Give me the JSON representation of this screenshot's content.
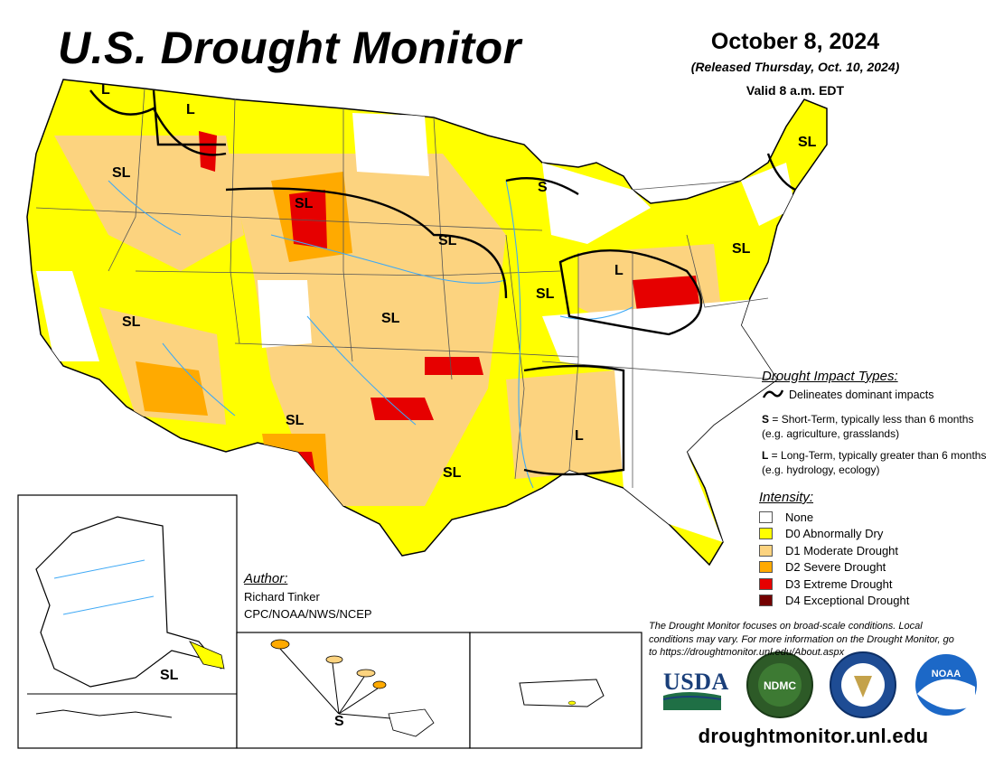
{
  "header": {
    "title": "U.S. Drought Monitor",
    "date": "October 8, 2024",
    "released": "(Released Thursday, Oct. 10, 2024)",
    "valid": "Valid 8 a.m. EDT"
  },
  "map_labels": {
    "sl": "SL",
    "s": "S",
    "l": "L"
  },
  "impact_types": {
    "heading": "Drought Impact Types:",
    "delineates": "Delineates dominant impacts",
    "short_term_key": "S",
    "short_term_text": " = Short-Term, typically less than 6 months (e.g. agriculture, grasslands)",
    "long_term_key": "L",
    "long_term_text": " = Long-Term, typically greater than 6 months (e.g. hydrology, ecology)"
  },
  "intensity": {
    "heading": "Intensity:",
    "items": [
      {
        "label": "None",
        "color": "#ffffff"
      },
      {
        "label": "D0 Abnormally Dry",
        "color": "#ffff00"
      },
      {
        "label": "D1 Moderate Drought",
        "color": "#fcd37f"
      },
      {
        "label": "D2 Severe Drought",
        "color": "#ffaa00"
      },
      {
        "label": "D3 Extreme Drought",
        "color": "#e60000"
      },
      {
        "label": "D4 Exceptional Drought",
        "color": "#730000"
      }
    ]
  },
  "author": {
    "heading": "Author:",
    "name": "Richard Tinker",
    "org": "CPC/NOAA/NWS/NCEP"
  },
  "disclaimer": "The Drought Monitor focuses on broad-scale conditions. Local conditions may vary. For more information on the Drought Monitor, go to https://droughtmonitor.unl.edu/About.aspx",
  "logos": {
    "usda": "USDA",
    "ndmc": "NDMC",
    "noaa": "NOAA",
    "ndmc_icon": "ndmc-seal",
    "commerce_icon": "commerce-seal",
    "noaa_icon": "noaa-logo"
  },
  "website": "droughtmonitor.unl.edu"
}
